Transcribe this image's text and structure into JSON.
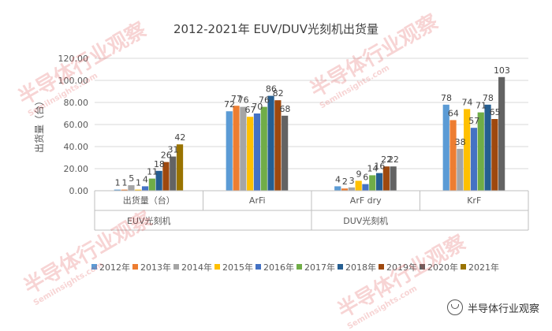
{
  "chart_data": {
    "type": "bar",
    "title": "2012-2021年 EUV/DUV光刻机出货量",
    "ylabel": "出货量（台）",
    "ylim": [
      0,
      120
    ],
    "yticks": [
      "0.00",
      "20.00",
      "40.00",
      "60.00",
      "80.00",
      "100.00",
      "120.00"
    ],
    "legend_position": "bottom",
    "x_inner_labels": [
      "出货量（台）",
      "ArFi",
      "ArF dry",
      "KrF"
    ],
    "x_outer_labels": [
      "EUV光刻机",
      "DUV光刻机"
    ],
    "series": [
      {
        "name": "2012年",
        "color": "#5b9bd5",
        "values": [
          1,
          72,
          4,
          78
        ]
      },
      {
        "name": "2013年",
        "color": "#ed7d31",
        "values": [
          1,
          77,
          2,
          64
        ]
      },
      {
        "name": "2014年",
        "color": "#a5a5a5",
        "values": [
          5,
          76,
          3,
          38
        ]
      },
      {
        "name": "2015年",
        "color": "#ffc000",
        "values": [
          1,
          67,
          9,
          74
        ]
      },
      {
        "name": "2016年",
        "color": "#4472c4",
        "values": [
          4,
          70,
          6,
          57
        ]
      },
      {
        "name": "2017年",
        "color": "#70ad47",
        "values": [
          11,
          76,
          14,
          71
        ]
      },
      {
        "name": "2018年",
        "color": "#255e91",
        "values": [
          18,
          86,
          16,
          78
        ]
      },
      {
        "name": "2019年",
        "color": "#9e480e",
        "values": [
          26,
          82,
          22,
          65
        ]
      },
      {
        "name": "2020年",
        "color": "#636363",
        "values": [
          31,
          68,
          22,
          103
        ]
      },
      {
        "name": "2021年",
        "color": "#997300",
        "values": [
          42,
          null,
          null,
          null
        ]
      }
    ]
  },
  "watermark": {
    "text": "半导体行业观察",
    "url": "SemiInsights.com"
  },
  "brand": {
    "text": "半导体行业观察",
    "icon": "wechat-channel-icon"
  }
}
